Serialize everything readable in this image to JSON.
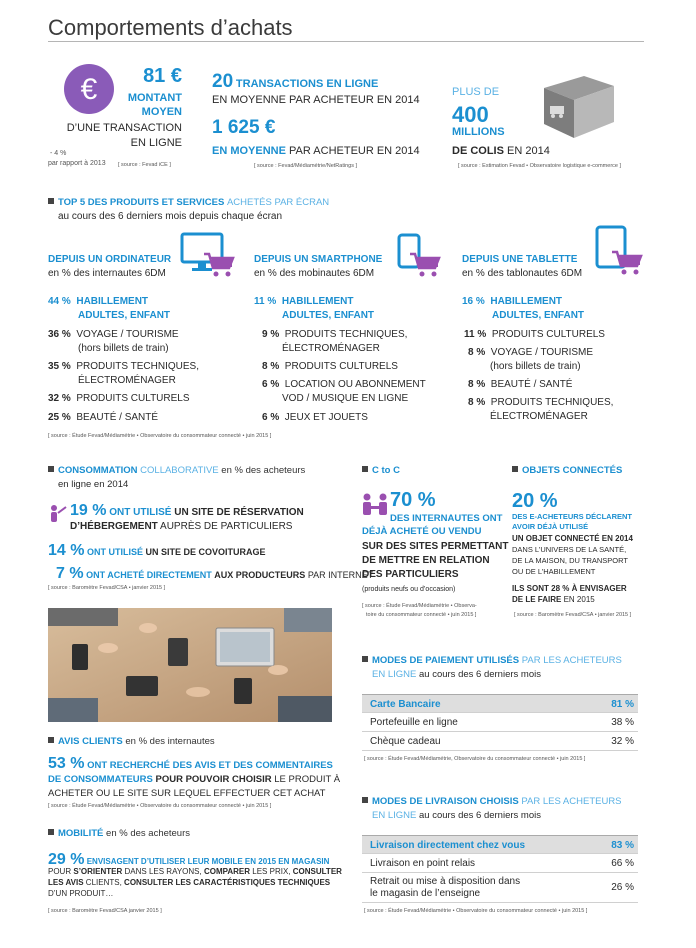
{
  "title": "Comportements d’achats",
  "colors": {
    "accent": "#1b8fd0",
    "euro_circle": "#8a5bb8",
    "purple": "#9a4fb0"
  },
  "stats": {
    "montant": {
      "value": "81 €",
      "label1": "MONTANT",
      "label2": "MOYEN",
      "label3": "D’UNE TRANSACTION",
      "label4": "EN LIGNE",
      "delta": "- 4 %",
      "delta_note": "par rapport à 2013",
      "source": "[ source : Fevad iCE ]",
      "icon": "euro-icon"
    },
    "transactions": {
      "value": "20",
      "label_bold": "TRANSACTIONS EN LIGNE",
      "label": "EN MOYENNE PAR ACHETEUR EN 2014"
    },
    "depense": {
      "value": "1 625 €",
      "label_bold": "EN MOYENNE",
      "label": "PAR ACHETEUR EN 2014",
      "source": "[ source : Fevad/Médiamétrie/NetRatings ]"
    },
    "colis": {
      "prefix": "PLUS DE",
      "value": "400",
      "unit": "MILLIONS",
      "label_bold": "DE COLIS",
      "label": "EN 2014",
      "source": "[ source : Estimation Fevad • Observatoire logistique e-commerce ]",
      "icon": "parcel-box-icon"
    }
  },
  "top5": {
    "title_bold": "TOP 5 DES PRODUITS ET SERVICES",
    "title_light": "ACHETÉS PAR ÉCRAN",
    "subtitle": "au cours des 6 derniers mois depuis chaque écran",
    "source": "[ source : Étude Fevad/Médiamétrie • Observatoire du consommateur connecté • juin 2015 ]",
    "columns": [
      {
        "heading": "DEPUIS UN ORDINATEUR",
        "sub": "en % des internautes 6DM",
        "icon": "computer-cart-icon",
        "top_pct": "44 %",
        "top_label1": "HABILLEMENT",
        "top_label2": "ADULTES, ENFANT",
        "items": [
          {
            "pct": "36 %",
            "label": "VOYAGE / TOURISME",
            "label2": "(hors billets de train)"
          },
          {
            "pct": "35 %",
            "label": "PRODUITS TECHNIQUES,",
            "label2": "ÉLECTROMÉNAGER"
          },
          {
            "pct": "32 %",
            "label": "PRODUITS CULTURELS",
            "label2": ""
          },
          {
            "pct": "25 %",
            "label": "BEAUTÉ / SANTÉ",
            "label2": ""
          }
        ]
      },
      {
        "heading": "DEPUIS UN SMARTPHONE",
        "sub": "en % des mobinautes 6DM",
        "icon": "smartphone-cart-icon",
        "top_pct": "11 %",
        "top_label1": "HABILLEMENT",
        "top_label2": "ADULTES, ENFANT",
        "items": [
          {
            "pct": "9 %",
            "label": "PRODUITS TECHNIQUES,",
            "label2": "ÉLECTROMÉNAGER"
          },
          {
            "pct": "8 %",
            "label": "PRODUITS CULTURELS",
            "label2": ""
          },
          {
            "pct": "6 %",
            "label": "LOCATION OU ABONNEMENT",
            "label2": "VOD / MUSIQUE EN LIGNE"
          },
          {
            "pct": "6 %",
            "label": "JEUX ET JOUETS",
            "label2": ""
          }
        ]
      },
      {
        "heading": "DEPUIS UNE TABLETTE",
        "sub": "en % des tablonautes 6DM",
        "icon": "tablet-cart-icon",
        "top_pct": "16 %",
        "top_label1": "HABILLEMENT",
        "top_label2": "ADULTES, ENFANT",
        "items": [
          {
            "pct": "11 %",
            "label": "PRODUITS CULTURELS",
            "label2": ""
          },
          {
            "pct": "8 %",
            "label": "VOYAGE / TOURISME",
            "label2": "(hors billets de train)"
          },
          {
            "pct": "8 %",
            "label": "BEAUTÉ / SANTÉ",
            "label2": ""
          },
          {
            "pct": "8 %",
            "label": "PRODUITS TECHNIQUES,",
            "label2": "ÉLECTROMÉNAGER"
          }
        ]
      }
    ]
  },
  "collab": {
    "title_bold": "CONSOMMATION",
    "title_light": "COLLABORATIVE",
    "title_rest": "en % des acheteurs",
    "title_line2": "en ligne en 2014",
    "l1_pct": "19 %",
    "l1_bold": "ONT UTILISÉ",
    "l1_rest": "UN SITE DE RÉSERVATION",
    "l1_line2_bold": "D’HÉBERGEMENT",
    "l1_line2_rest": "AUPRÈS DE PARTICULIERS",
    "l2_pct": "14 %",
    "l2_bold": "ONT UTILISÉ",
    "l2_rest": "UN SITE DE COVOITURAGE",
    "l3_pct": "7 %",
    "l3_bold": "ONT ACHETÉ DIRECTEMENT",
    "l3_rest": "AUX PRODUCTEURS",
    "l3_tail": "PAR INTERNET",
    "source": "[ source : Baromètre Fevad/CSA • janvier 2015 ]",
    "icon": "people-icon"
  },
  "ctoc": {
    "title": "C to C",
    "pct": "70 %",
    "l1": "DES INTERNAUTES ONT",
    "l2": "DÉJÀ ACHETÉ OU VENDU",
    "l3": "SUR DES SITES PERMETTANT",
    "l4": "DE METTRE EN RELATION",
    "l5": "DES PARTICULIERS",
    "note": "(produits neufs ou d’occasion)",
    "source1": "[ source : Étude Fevad/Médiamétrie • Observa-",
    "source2": "toire du consommateur connecté • juin 2015 ]",
    "icon": "two-people-icon"
  },
  "objets": {
    "title": "OBJETS CONNECTÉS",
    "pct": "20 %",
    "l1": "DES E-ACHETEURS DÉCLARENT",
    "l2": "AVOIR DÉJÀ UTILISÉ",
    "l3": "UN OBJET CONNECTÉ EN 2014",
    "l4": "DANS L’UNIVERS DE LA SANTÉ,",
    "l5": "DE LA MAISON, DU TRANSPORT",
    "l6": "OU DE L’HABILLEMENT",
    "l7": "ILS SONT 28 % À ENVISAGER",
    "l8_bold": "DE LE FAIRE",
    "l8_rest": "EN 2015",
    "source": "[ source : Baromètre Fevad/CSA • janvier 2015 ]"
  },
  "paiement": {
    "title_bold": "MODES DE PAIEMENT UTILISÉS",
    "title_light": "PAR LES ACHETEURS",
    "title_line2_light": "EN LIGNE",
    "title_line2_rest": "au cours des 6 derniers mois",
    "rows": [
      {
        "label": "Carte Bancaire",
        "value": "81 %"
      },
      {
        "label": "Portefeuille en ligne",
        "value": "38 %"
      },
      {
        "label": "Chèque cadeau",
        "value": "32 %"
      }
    ],
    "source": "[ source : Étude Fevad/Médiamétrie, Observatoire du consommateur connecté • juin 2015 ]"
  },
  "livraison": {
    "title_bold": "MODES DE LIVRAISON CHOISIS",
    "title_light": "PAR LES ACHETEURS",
    "title_line2_light": "EN LIGNE",
    "title_line2_rest": "au cours des 6 derniers mois",
    "rows": [
      {
        "label": "Livraison directement chez vous",
        "value": "83 %"
      },
      {
        "label": "Livraison en point relais",
        "value": "66 %"
      },
      {
        "label": "Retrait ou mise à disposition dans",
        "label2": "le magasin de l’enseigne",
        "value": "26 %"
      }
    ],
    "source": "[ source : Étude Fevad/Médiamétrie • Observatoire du consommateur connecté • juin 2015 ]"
  },
  "avis": {
    "title_bold": "AVIS CLIENTS",
    "title_rest": "en % des internautes",
    "pct": "53 %",
    "l1": "ONT RECHERCHÉ DES AVIS ET DES COMMENTAIRES",
    "l2_blue": "DE CONSOMMATEURS",
    "l2_bold": "POUR POUVOIR CHOISIR",
    "l2_rest": "LE PRODUIT À",
    "l3": "ACHETER OU LE SITE SUR LEQUEL EFFECTUER CET ACHAT",
    "source": "[ source : Étude Fevad/Médiamétrie • Observatoire du consommateur connecté • juin 2015 ]"
  },
  "mobilite": {
    "title_bold": "MOBILITÉ",
    "title_rest": "en % des acheteurs",
    "pct": "29 %",
    "l1": "ENVISAGENT D’UTILISER LEUR MOBILE EN 2015 EN MAGASIN",
    "l2a": "POUR",
    "l2b": "S’ORIENTER",
    "l2c": "DANS LES RAYONS,",
    "l2d": "COMPARER",
    "l2e": "LES PRIX,",
    "l2f": "CONSULTER",
    "l3a": "LES AVIS",
    "l3b": "CLIENTS,",
    "l3c": "CONSULTER LES CARACTÉRISTIQUES TECHNIQUES",
    "l4": "D’UN PRODUIT…",
    "source": "[ source : Baromètre Fevad/CSA janvier 2015 ]"
  },
  "photo": {
    "icon": "meeting-table-photo"
  }
}
